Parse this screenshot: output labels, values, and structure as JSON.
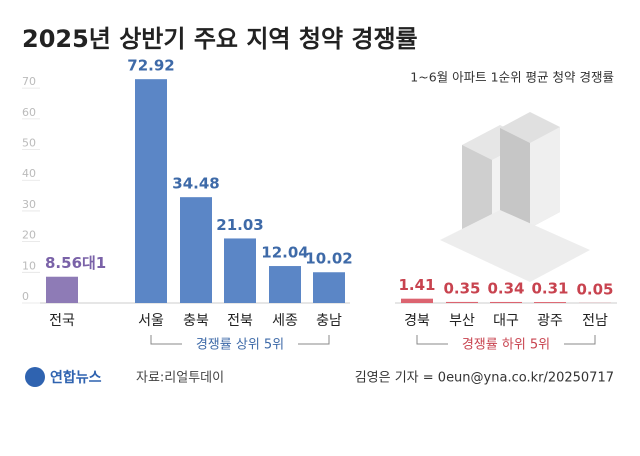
{
  "chart_data": {
    "type": "bar",
    "title": "2025년 상반기 주요 지역 청약 경쟁률",
    "subtitle": "1~6월 아파트 1순위 평균 청약 경쟁률",
    "categories": [
      "전국",
      "서울",
      "충북",
      "전북",
      "세종",
      "충남",
      "경북",
      "부산",
      "대구",
      "광주",
      "전남"
    ],
    "values": [
      8.56,
      72.92,
      34.48,
      21.03,
      12.04,
      10.02,
      1.41,
      0.35,
      0.34,
      0.31,
      0.05
    ],
    "value_labels": [
      "8.56대1",
      "72.92",
      "34.48",
      "21.03",
      "12.04",
      "10.02",
      "1.41",
      "0.35",
      "0.34",
      "0.31",
      "0.05"
    ],
    "colors": [
      "#8e7bb6",
      "#5b86c6",
      "#5b86c6",
      "#5b86c6",
      "#5b86c6",
      "#5b86c6",
      "#dc6470",
      "#dc6470",
      "#dc6470",
      "#dc6470",
      "#dc6470"
    ],
    "label_colors": [
      "#7a62a8",
      "#3e6aa8",
      "#3e6aa8",
      "#3e6aa8",
      "#3e6aa8",
      "#3e6aa8",
      "#c8434f",
      "#c8434f",
      "#c8434f",
      "#c8434f",
      "#c8434f"
    ],
    "annotations": [
      "경쟁률 상위 5위",
      "경쟁률 하위 5위"
    ],
    "ylim": [
      0,
      75
    ],
    "yticks": [
      0,
      10,
      20,
      30,
      40,
      50,
      60,
      70
    ],
    "grid": false,
    "source": "자료:리얼투데이",
    "logo": "연합뉴스",
    "credit": "김영은 기자 = 0eun@yna.co.kr/20250717"
  }
}
